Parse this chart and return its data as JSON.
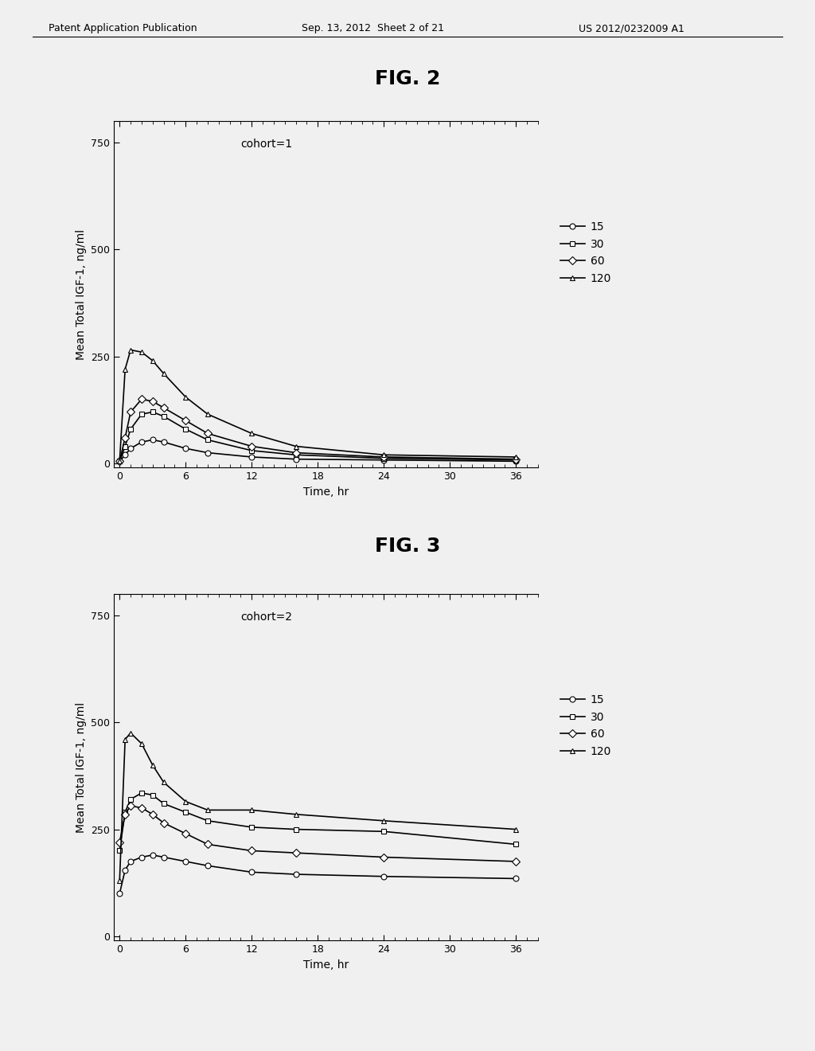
{
  "fig1_title": "FIG. 2",
  "fig2_title": "FIG. 3",
  "header_left": "Patent Application Publication",
  "header_mid": "Sep. 13, 2012  Sheet 2 of 21",
  "header_right": "US 2012/0232009 A1",
  "ylabel": "Mean Total IGF-1, ng/ml",
  "xlabel": "Time, hr",
  "cohort1_label": "cohort=1",
  "cohort2_label": "cohort=2",
  "legend_labels": [
    "15",
    "30",
    "60",
    "120"
  ],
  "xticks": [
    0,
    6,
    12,
    18,
    24,
    30,
    36
  ],
  "yticks": [
    0,
    250,
    500,
    750
  ],
  "ylim": [
    -10,
    800
  ],
  "xlim": [
    -0.5,
    38
  ],
  "cohort1": {
    "time_15": [
      0,
      0.5,
      1,
      2,
      3,
      4,
      6,
      8,
      12,
      16,
      24,
      36
    ],
    "vals_15": [
      5,
      20,
      35,
      50,
      55,
      50,
      35,
      25,
      15,
      10,
      8,
      5
    ],
    "time_30": [
      0,
      0.5,
      1,
      2,
      3,
      4,
      6,
      8,
      12,
      16,
      24,
      36
    ],
    "vals_30": [
      5,
      40,
      80,
      115,
      120,
      110,
      80,
      55,
      30,
      20,
      12,
      8
    ],
    "time_60": [
      0,
      0.5,
      1,
      2,
      3,
      4,
      6,
      8,
      12,
      16,
      24,
      36
    ],
    "vals_60": [
      5,
      60,
      120,
      150,
      145,
      130,
      100,
      70,
      40,
      25,
      15,
      10
    ],
    "time_120": [
      0,
      0.5,
      1,
      2,
      3,
      4,
      6,
      8,
      12,
      16,
      24,
      36
    ],
    "vals_120": [
      5,
      220,
      265,
      260,
      240,
      210,
      155,
      115,
      70,
      40,
      20,
      15
    ]
  },
  "cohort2": {
    "time_15": [
      0,
      0.5,
      1,
      2,
      3,
      4,
      6,
      8,
      12,
      16,
      24,
      36
    ],
    "vals_15": [
      100,
      155,
      175,
      185,
      190,
      185,
      175,
      165,
      150,
      145,
      140,
      135
    ],
    "time_30": [
      0,
      0.5,
      1,
      2,
      3,
      4,
      6,
      8,
      12,
      16,
      24,
      36
    ],
    "vals_30": [
      200,
      290,
      320,
      335,
      330,
      310,
      290,
      270,
      255,
      250,
      245,
      215
    ],
    "time_60": [
      0,
      0.5,
      1,
      2,
      3,
      4,
      6,
      8,
      12,
      16,
      24,
      36
    ],
    "vals_60": [
      220,
      285,
      305,
      300,
      285,
      265,
      240,
      215,
      200,
      195,
      185,
      175
    ],
    "time_120": [
      0,
      0.5,
      1,
      2,
      3,
      4,
      6,
      8,
      12,
      16,
      24,
      36
    ],
    "vals_120": [
      130,
      460,
      475,
      450,
      400,
      360,
      315,
      295,
      295,
      285,
      270,
      250
    ]
  },
  "line_color": "#000000",
  "bg_color": "#f0f0f0",
  "plot_bg": "#f0f0f0",
  "marker_15": "o",
  "marker_30": "s",
  "marker_60": "D",
  "marker_120": "^",
  "markersize": 5,
  "linewidth": 1.2,
  "font_size_label": 10,
  "font_size_cohort": 10,
  "font_size_fig": 18,
  "font_size_header": 9,
  "font_size_legend": 10,
  "font_size_tick": 9
}
